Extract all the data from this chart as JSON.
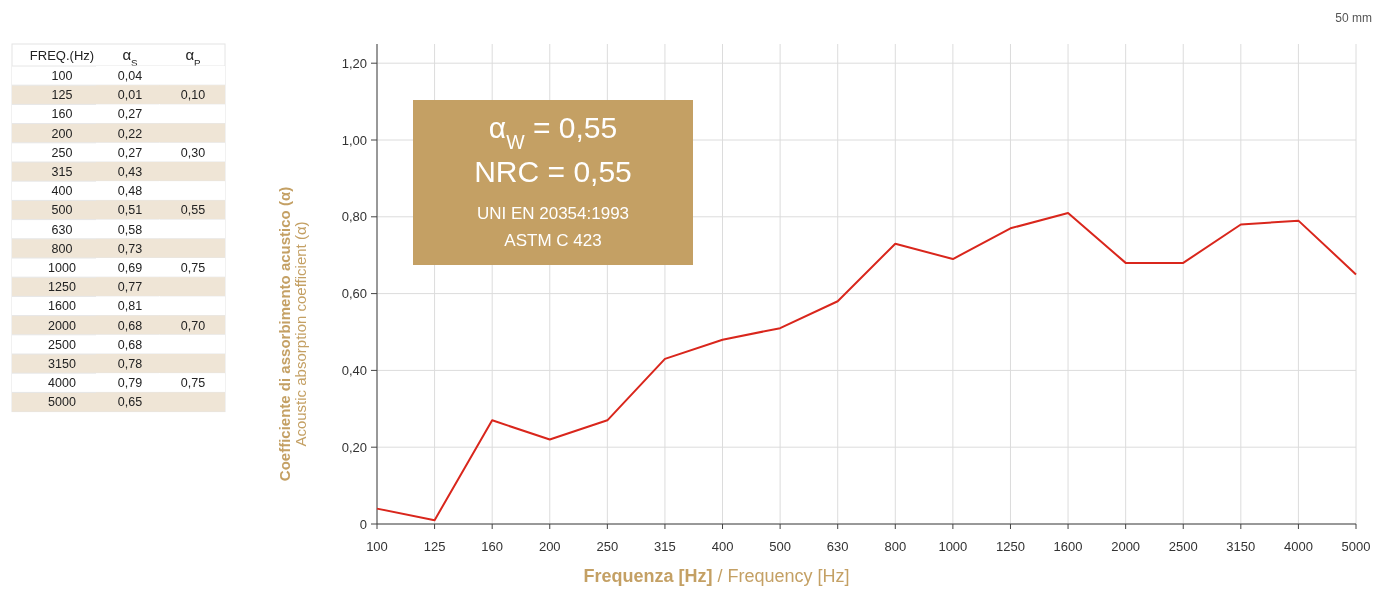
{
  "chart_data": [
    {
      "type": "line",
      "xlabel": "Frequenza [Hz] / Frequency [Hz]",
      "ylabel": "Coefficiente di assorbimento acustico (α)\nAcoustic absorption coefficient (α)",
      "categories": [
        "100",
        "125",
        "160",
        "200",
        "250",
        "315",
        "400",
        "500",
        "630",
        "800",
        "1000",
        "1250",
        "1600",
        "2000",
        "2500",
        "3150",
        "4000",
        "5000"
      ],
      "series": [
        {
          "color": "#d9261c",
          "values": [
            0.04,
            0.01,
            0.27,
            0.22,
            0.27,
            0.43,
            0.48,
            0.51,
            0.58,
            0.73,
            0.69,
            0.77,
            0.81,
            0.68,
            0.68,
            0.78,
            0.79,
            0.65
          ]
        }
      ],
      "ylim": [
        0,
        1.25
      ],
      "yticks": [
        {
          "value": 0,
          "label": "0"
        },
        {
          "value": 0.2,
          "label": "0,20"
        },
        {
          "value": 0.4,
          "label": "0,40"
        },
        {
          "value": 0.6,
          "label": "0,60"
        },
        {
          "value": 0.8,
          "label": "0,80"
        },
        {
          "value": 1,
          "label": "1,00"
        },
        {
          "value": 1.2,
          "label": "1,20"
        }
      ],
      "grid": true,
      "marker": "none",
      "line_style": "solid",
      "annotations": [
        "α$_{W}$ = 0,55",
        "NRC = 0,55",
        "UNI EN 20354:1993",
        "ASTM C 423",
        "50 mm"
      ]
    },
    {
      "type": "other",
      "xlabel": "FREQ.(Hz)",
      "categories": [
        "100",
        "125",
        "160",
        "200",
        "250",
        "315",
        "400",
        "500",
        "630",
        "800",
        "1000",
        "1250",
        "1600",
        "2000",
        "2500",
        "3150",
        "4000",
        "5000"
      ],
      "series": [
        {
          "name": "α$_{S}$",
          "colors": [
            "#ffffff",
            "#efe5d6",
            "#ffffff",
            "#efe5d6",
            "#ffffff",
            "#efe5d6",
            "#ffffff",
            "#efe5d6",
            "#ffffff",
            "#efe5d6",
            "#ffffff",
            "#efe5d6",
            "#ffffff",
            "#efe5d6",
            "#ffffff",
            "#efe5d6",
            "#ffffff",
            "#efe5d6"
          ],
          "values": [
            0.04,
            0.01,
            0.27,
            0.22,
            0.27,
            0.43,
            0.48,
            0.51,
            0.58,
            0.73,
            0.69,
            0.77,
            0.81,
            0.68,
            0.68,
            0.78,
            0.79,
            0.65
          ],
          "value_labels": [
            "0,04",
            "0,01",
            "0,27",
            "0,22",
            "0,27",
            "0,43",
            "0,48",
            "0,51",
            "0,58",
            "0,73",
            "0,69",
            "0,77",
            "0,81",
            "0,68",
            "0,68",
            "0,78",
            "0,79",
            "0,65"
          ]
        },
        {
          "name": "α$_{P}$",
          "colors": [
            "#ffffff",
            "#efe5d6",
            "#ffffff",
            "#efe5d6",
            "#ffffff",
            "#efe5d6",
            "#ffffff",
            "#efe5d6",
            "#ffffff",
            "#efe5d6",
            "#ffffff",
            "#efe5d6",
            "#ffffff",
            "#efe5d6",
            "#ffffff",
            "#efe5d6",
            "#ffffff",
            "#efe5d6"
          ],
          "values": [
            null,
            0.1,
            null,
            null,
            0.3,
            null,
            null,
            0.55,
            null,
            null,
            0.75,
            null,
            null,
            0.7,
            null,
            null,
            0.75,
            null
          ],
          "value_labels": [
            null,
            "0,10",
            null,
            null,
            "0,30",
            null,
            null,
            "0,55",
            null,
            null,
            "0,75",
            null,
            null,
            "0,70",
            null,
            null,
            "0,75",
            null
          ]
        }
      ]
    }
  ]
}
